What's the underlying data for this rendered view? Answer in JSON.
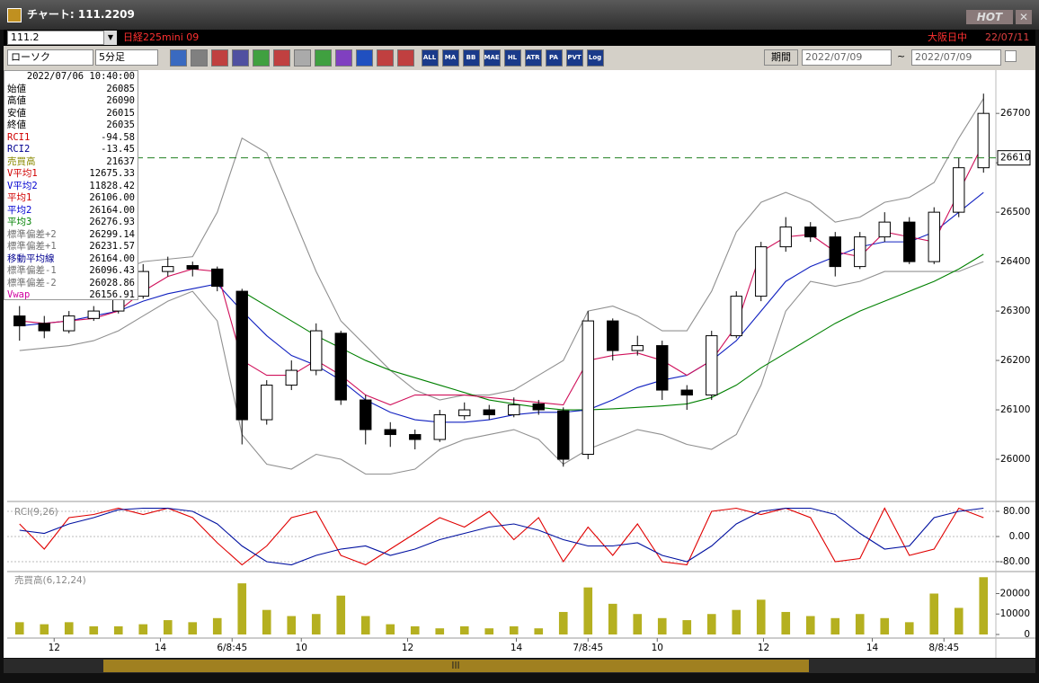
{
  "window": {
    "title": "チャート: 111.2209",
    "hot": "HOT"
  },
  "toolbar": {
    "symbol": "111.2",
    "name": "日経225mini 09",
    "market": "大阪日中",
    "date": "22/07/11",
    "chart_type": "ローソク",
    "interval": "5分足",
    "period": "期間",
    "from": "2022/07/09",
    "tilde": "~",
    "to": "2022/07/09",
    "buttons": [
      "ALL",
      "MA",
      "BB",
      "MAE",
      "HL",
      "ATR",
      "PA",
      "PVT",
      "Log"
    ]
  },
  "info": {
    "datetime": "2022/07/06 10:40:00",
    "rows": [
      {
        "label": "始値",
        "value": "26085",
        "color": "#000000"
      },
      {
        "label": "高値",
        "value": "26090",
        "color": "#000000"
      },
      {
        "label": "安値",
        "value": "26015",
        "color": "#000000"
      },
      {
        "label": "終値",
        "value": "26035",
        "color": "#000000"
      },
      {
        "label": "RCI1",
        "value": "-94.58",
        "color": "#d00000"
      },
      {
        "label": "RCI2",
        "value": "-13.45",
        "color": "#000090"
      },
      {
        "label": "売買高",
        "value": "21637",
        "color": "#8a8a00"
      },
      {
        "label": "V平均1",
        "value": "12675.33",
        "color": "#d00000"
      },
      {
        "label": "V平均2",
        "value": "11828.42",
        "color": "#0000d0"
      },
      {
        "label": "平均1",
        "value": "26106.00",
        "color": "#d00000"
      },
      {
        "label": "平均2",
        "value": "26164.00",
        "color": "#0000d0"
      },
      {
        "label": "平均3",
        "value": "26276.93",
        "color": "#008000"
      },
      {
        "label": "標準偏差+2",
        "value": "26299.14",
        "color": "#707070"
      },
      {
        "label": "標準偏差+1",
        "value": "26231.57",
        "color": "#707070"
      },
      {
        "label": "移動平均線",
        "value": "26164.00",
        "color": "#000090"
      },
      {
        "label": "標準偏差-1",
        "value": "26096.43",
        "color": "#707070"
      },
      {
        "label": "標準偏差-2",
        "value": "26028.86",
        "color": "#707070"
      },
      {
        "label": "Vwap",
        "value": "26156.91",
        "color": "#d000a0"
      }
    ]
  },
  "chart_data": [
    {
      "type": "candlestick",
      "xlim": [
        -0.5,
        39.5
      ],
      "ylim": [
        25920,
        26784
      ],
      "yticks": [
        26000,
        26100,
        26200,
        26300,
        26400,
        26500,
        26600,
        26700
      ],
      "grid": false,
      "up_color": "#ffffff",
      "down_color": "#000000",
      "open": [
        26290,
        26275,
        26260,
        26285,
        26300,
        26330,
        26380,
        26392,
        26385,
        26340,
        26080,
        26150,
        26180,
        26255,
        26120,
        26060,
        26050,
        26040,
        26088,
        26100,
        26090,
        26112,
        26098,
        26010,
        26280,
        26220,
        26230,
        26140,
        26130,
        26250,
        26330,
        26430,
        26470,
        26450,
        26390,
        26450,
        26480,
        26400,
        26500,
        26590
      ],
      "high": [
        26310,
        26290,
        26300,
        26310,
        26345,
        26395,
        26410,
        26400,
        26390,
        26345,
        26160,
        26200,
        26275,
        26260,
        26130,
        26075,
        26060,
        26100,
        26115,
        26110,
        26125,
        26120,
        26105,
        26300,
        26285,
        26250,
        26240,
        26150,
        26260,
        26340,
        26440,
        26490,
        26480,
        26460,
        26460,
        26500,
        26490,
        26510,
        26610,
        26740
      ],
      "low": [
        26240,
        26245,
        26255,
        26280,
        26295,
        26325,
        26370,
        26370,
        26340,
        26030,
        26070,
        26140,
        26170,
        26110,
        26030,
        26025,
        26020,
        26035,
        26080,
        26080,
        26085,
        26090,
        25985,
        26000,
        26200,
        26210,
        26120,
        26100,
        26120,
        26245,
        26320,
        26420,
        26440,
        26370,
        26385,
        26440,
        26395,
        26395,
        26490,
        26580
      ],
      "close": [
        26270,
        26260,
        26290,
        26300,
        26330,
        26380,
        26390,
        26385,
        26350,
        26080,
        26150,
        26180,
        26260,
        26120,
        26060,
        26050,
        26040,
        26090,
        26100,
        26090,
        26110,
        26100,
        26000,
        26280,
        26220,
        26230,
        26140,
        26130,
        26250,
        26330,
        26430,
        26470,
        26450,
        26390,
        26450,
        26480,
        26400,
        26500,
        26590,
        26700
      ],
      "lines": [
        {
          "color": "#909090",
          "values": [
            26340,
            26345,
            26350,
            26360,
            26380,
            26400,
            26405,
            26410,
            26500,
            26650,
            26620,
            26500,
            26380,
            26280,
            26230,
            26180,
            26140,
            26120,
            26130,
            26130,
            26140,
            26170,
            26200,
            26300,
            26310,
            26290,
            26260,
            26260,
            26340,
            26460,
            26520,
            26540,
            26520,
            26480,
            26490,
            26520,
            26530,
            26560,
            26650,
            26730
          ]
        },
        {
          "color": "#909090",
          "values": [
            26220,
            26225,
            26230,
            26240,
            26260,
            26290,
            26320,
            26340,
            26280,
            26050,
            25990,
            25980,
            26010,
            26000,
            25970,
            25970,
            25980,
            26020,
            26040,
            26050,
            26060,
            26040,
            25990,
            26020,
            26040,
            26060,
            26050,
            26030,
            26020,
            26050,
            26150,
            26300,
            26360,
            26350,
            26360,
            26380,
            26380,
            26380,
            26380,
            26400
          ]
        },
        {
          "color": "#008000",
          "values": [
            null,
            null,
            null,
            null,
            null,
            null,
            null,
            null,
            null,
            26340,
            26310,
            26280,
            26250,
            26225,
            26200,
            26180,
            26165,
            26150,
            26135,
            26120,
            26112,
            26105,
            26100,
            26100,
            26102,
            26105,
            26108,
            26112,
            26125,
            26150,
            26185,
            26215,
            26245,
            26275,
            26300,
            26320,
            26340,
            26360,
            26385,
            26415
          ]
        },
        {
          "color": "#1020c0",
          "values": [
            26270,
            26275,
            26280,
            26290,
            26300,
            26320,
            26335,
            26345,
            26355,
            26300,
            26250,
            26210,
            26190,
            26160,
            26120,
            26095,
            26080,
            26075,
            26075,
            26080,
            26090,
            26095,
            26095,
            26100,
            26120,
            26145,
            26160,
            26170,
            26200,
            26240,
            26300,
            26360,
            26390,
            26410,
            26430,
            26440,
            26440,
            26460,
            26500,
            26540
          ]
        },
        {
          "color": "#d0105a",
          "values": [
            26280,
            26275,
            26280,
            26285,
            26300,
            26340,
            26370,
            26385,
            26380,
            26200,
            26170,
            26170,
            26200,
            26170,
            26130,
            26110,
            26130,
            26130,
            26130,
            26125,
            26120,
            26115,
            26110,
            26200,
            26210,
            26215,
            26200,
            26170,
            26200,
            26270,
            26420,
            26450,
            26455,
            26420,
            26410,
            26460,
            26450,
            26440,
            26540,
            26640
          ]
        }
      ],
      "last_price": 26610,
      "last_price_color": "#208020"
    },
    {
      "type": "line",
      "title": "RCI(9,26)",
      "xlim": [
        -0.5,
        39.5
      ],
      "ylim": [
        -100,
        100
      ],
      "yticks": [
        {
          "value": 80,
          "label": "80.00"
        },
        {
          "value": 0,
          "label": "0.00"
        },
        {
          "value": -80,
          "label": "-80.00"
        }
      ],
      "grid": true,
      "series": [
        {
          "color": "#e00000",
          "values": [
            40,
            -40,
            60,
            70,
            90,
            70,
            90,
            60,
            -20,
            -90,
            -30,
            60,
            80,
            -60,
            -90,
            -40,
            10,
            60,
            30,
            80,
            -10,
            60,
            -80,
            30,
            -60,
            40,
            -80,
            -90,
            80,
            90,
            70,
            90,
            60,
            -80,
            -70,
            90,
            -60,
            -40,
            90,
            60
          ]
        },
        {
          "color": "#0010a0",
          "values": [
            20,
            10,
            40,
            60,
            85,
            90,
            90,
            80,
            40,
            -30,
            -80,
            -90,
            -60,
            -40,
            -30,
            -60,
            -40,
            -10,
            10,
            30,
            40,
            20,
            -10,
            -30,
            -30,
            -20,
            -60,
            -80,
            -30,
            40,
            80,
            90,
            90,
            70,
            10,
            -40,
            -30,
            60,
            80,
            90
          ]
        }
      ]
    },
    {
      "type": "bar",
      "title": "売買高(6,12,24)",
      "xlim": [
        -0.5,
        39.5
      ],
      "ylim": [
        0,
        29000
      ],
      "yticks": [
        0,
        10000,
        20000
      ],
      "grid": false,
      "color": "#b5b020",
      "values": [
        6000,
        5000,
        6000,
        4000,
        4000,
        5000,
        7000,
        6000,
        8000,
        25000,
        12000,
        9000,
        10000,
        19000,
        9000,
        5000,
        4000,
        3000,
        4000,
        3000,
        4000,
        3000,
        11000,
        23000,
        15000,
        10000,
        8000,
        7000,
        10000,
        12000,
        17000,
        11000,
        9000,
        8000,
        10000,
        8000,
        6000,
        20000,
        13000,
        28000
      ],
      "xticks": [
        {
          "value": 1.4,
          "label": "12"
        },
        {
          "value": 5.7,
          "label": "14"
        },
        {
          "value": 8.6,
          "label": "6/8:45"
        },
        {
          "value": 11.4,
          "label": "10"
        },
        {
          "value": 15.7,
          "label": "12"
        },
        {
          "value": 20.1,
          "label": "14"
        },
        {
          "value": 23,
          "label": "7/8:45"
        },
        {
          "value": 25.8,
          "label": "10"
        },
        {
          "value": 30.1,
          "label": "12"
        },
        {
          "value": 34.5,
          "label": "14"
        },
        {
          "value": 37.4,
          "label": "8/8:45"
        }
      ]
    }
  ]
}
